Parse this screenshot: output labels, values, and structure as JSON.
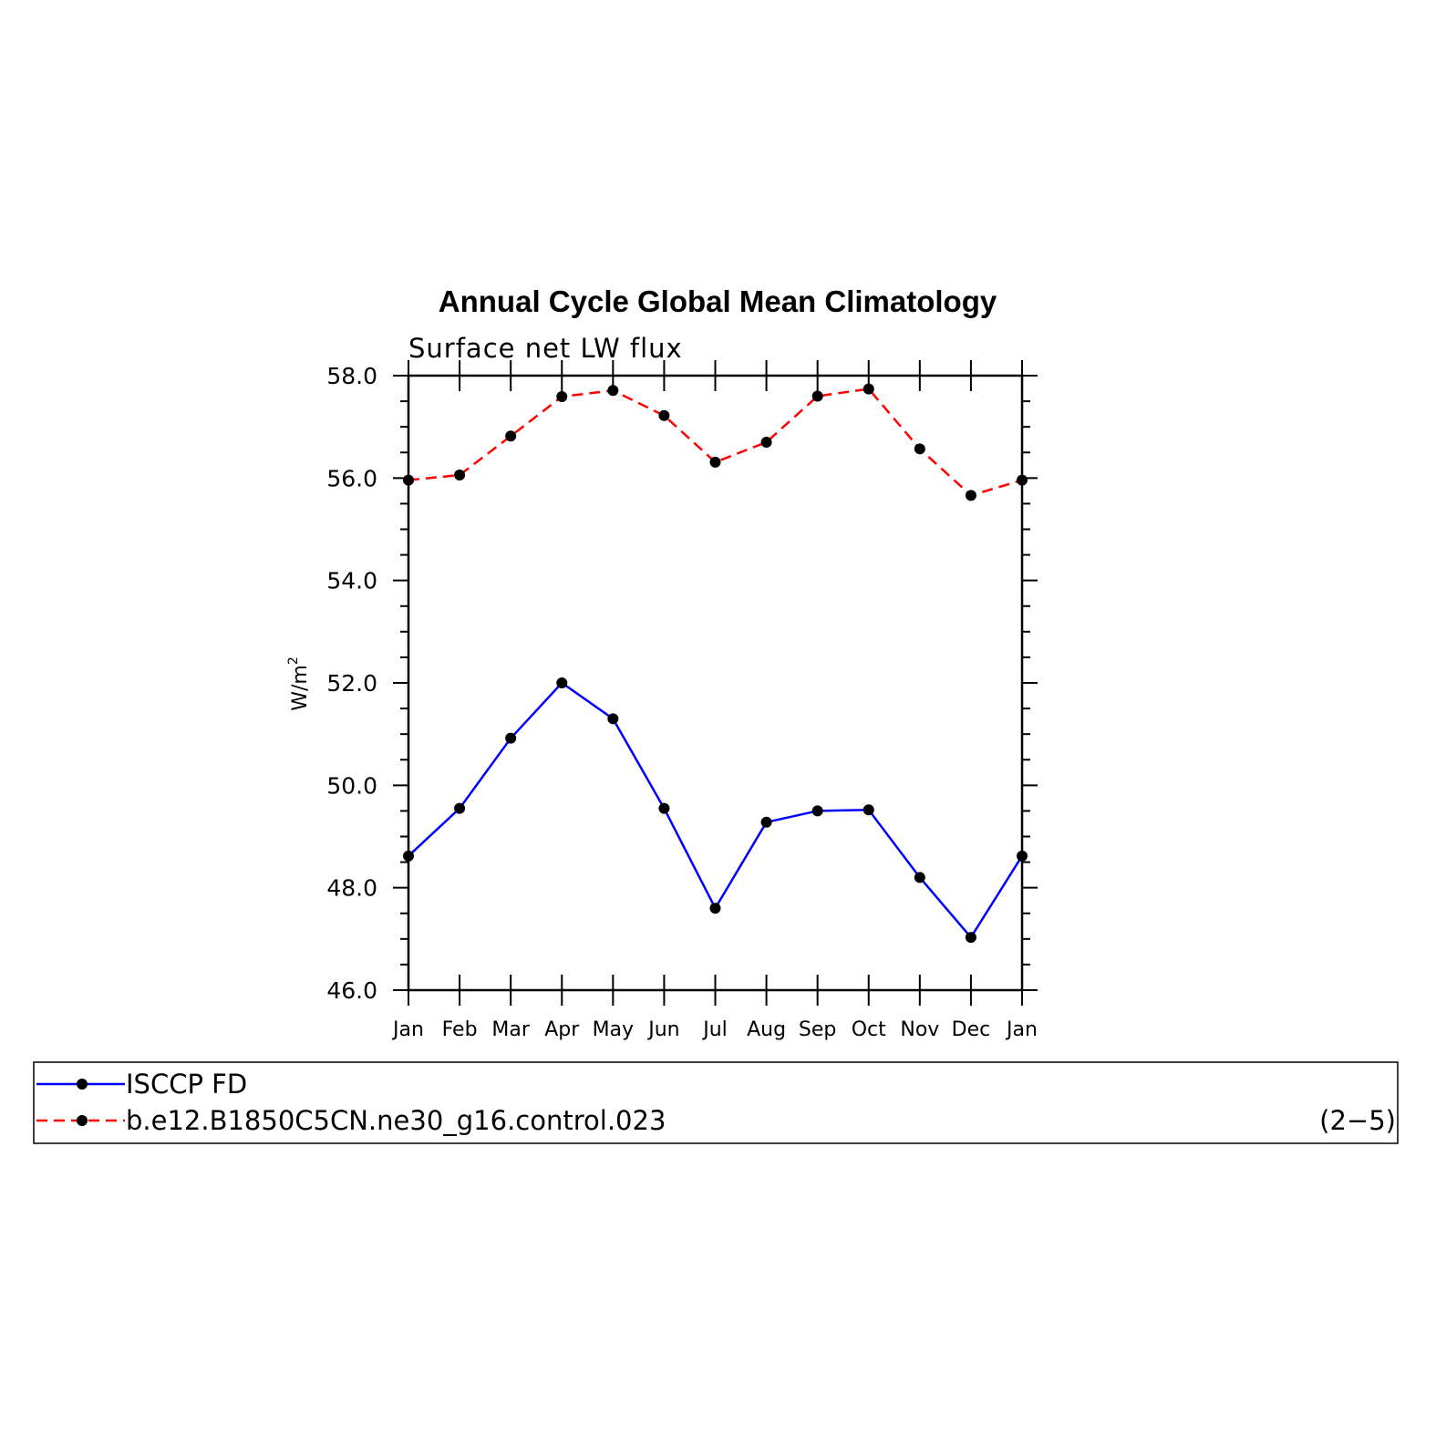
{
  "chart_data": {
    "type": "line",
    "title": "Annual Cycle Global Mean Climatology",
    "subtitle": "Surface net LW flux",
    "ylabel": "W/m",
    "ylabel_superscript": "2",
    "ylim": [
      46.0,
      58.0
    ],
    "yticks": [
      "46.0",
      "48.0",
      "50.0",
      "52.0",
      "54.0",
      "56.0",
      "58.0"
    ],
    "categories": [
      "Jan",
      "Feb",
      "Mar",
      "Apr",
      "May",
      "Jun",
      "Jul",
      "Aug",
      "Sep",
      "Oct",
      "Nov",
      "Dec",
      "Jan"
    ],
    "series": [
      {
        "name": "ISCCP FD",
        "color": "#0000ff",
        "dash": "solid",
        "values": [
          48.62,
          49.55,
          50.92,
          52.0,
          51.3,
          49.55,
          47.6,
          49.28,
          49.5,
          49.52,
          48.2,
          47.03,
          48.62
        ]
      },
      {
        "name": "b.e12.B1850C5CN.ne30_g16.control.023",
        "color": "#ff0000",
        "dash": "dashed",
        "values": [
          55.96,
          56.06,
          56.82,
          57.59,
          57.71,
          57.22,
          56.31,
          56.7,
          57.6,
          57.74,
          56.57,
          55.66,
          55.96
        ]
      }
    ],
    "grid": false,
    "legend_position": "bottom",
    "panel_label": "(2−5)"
  }
}
